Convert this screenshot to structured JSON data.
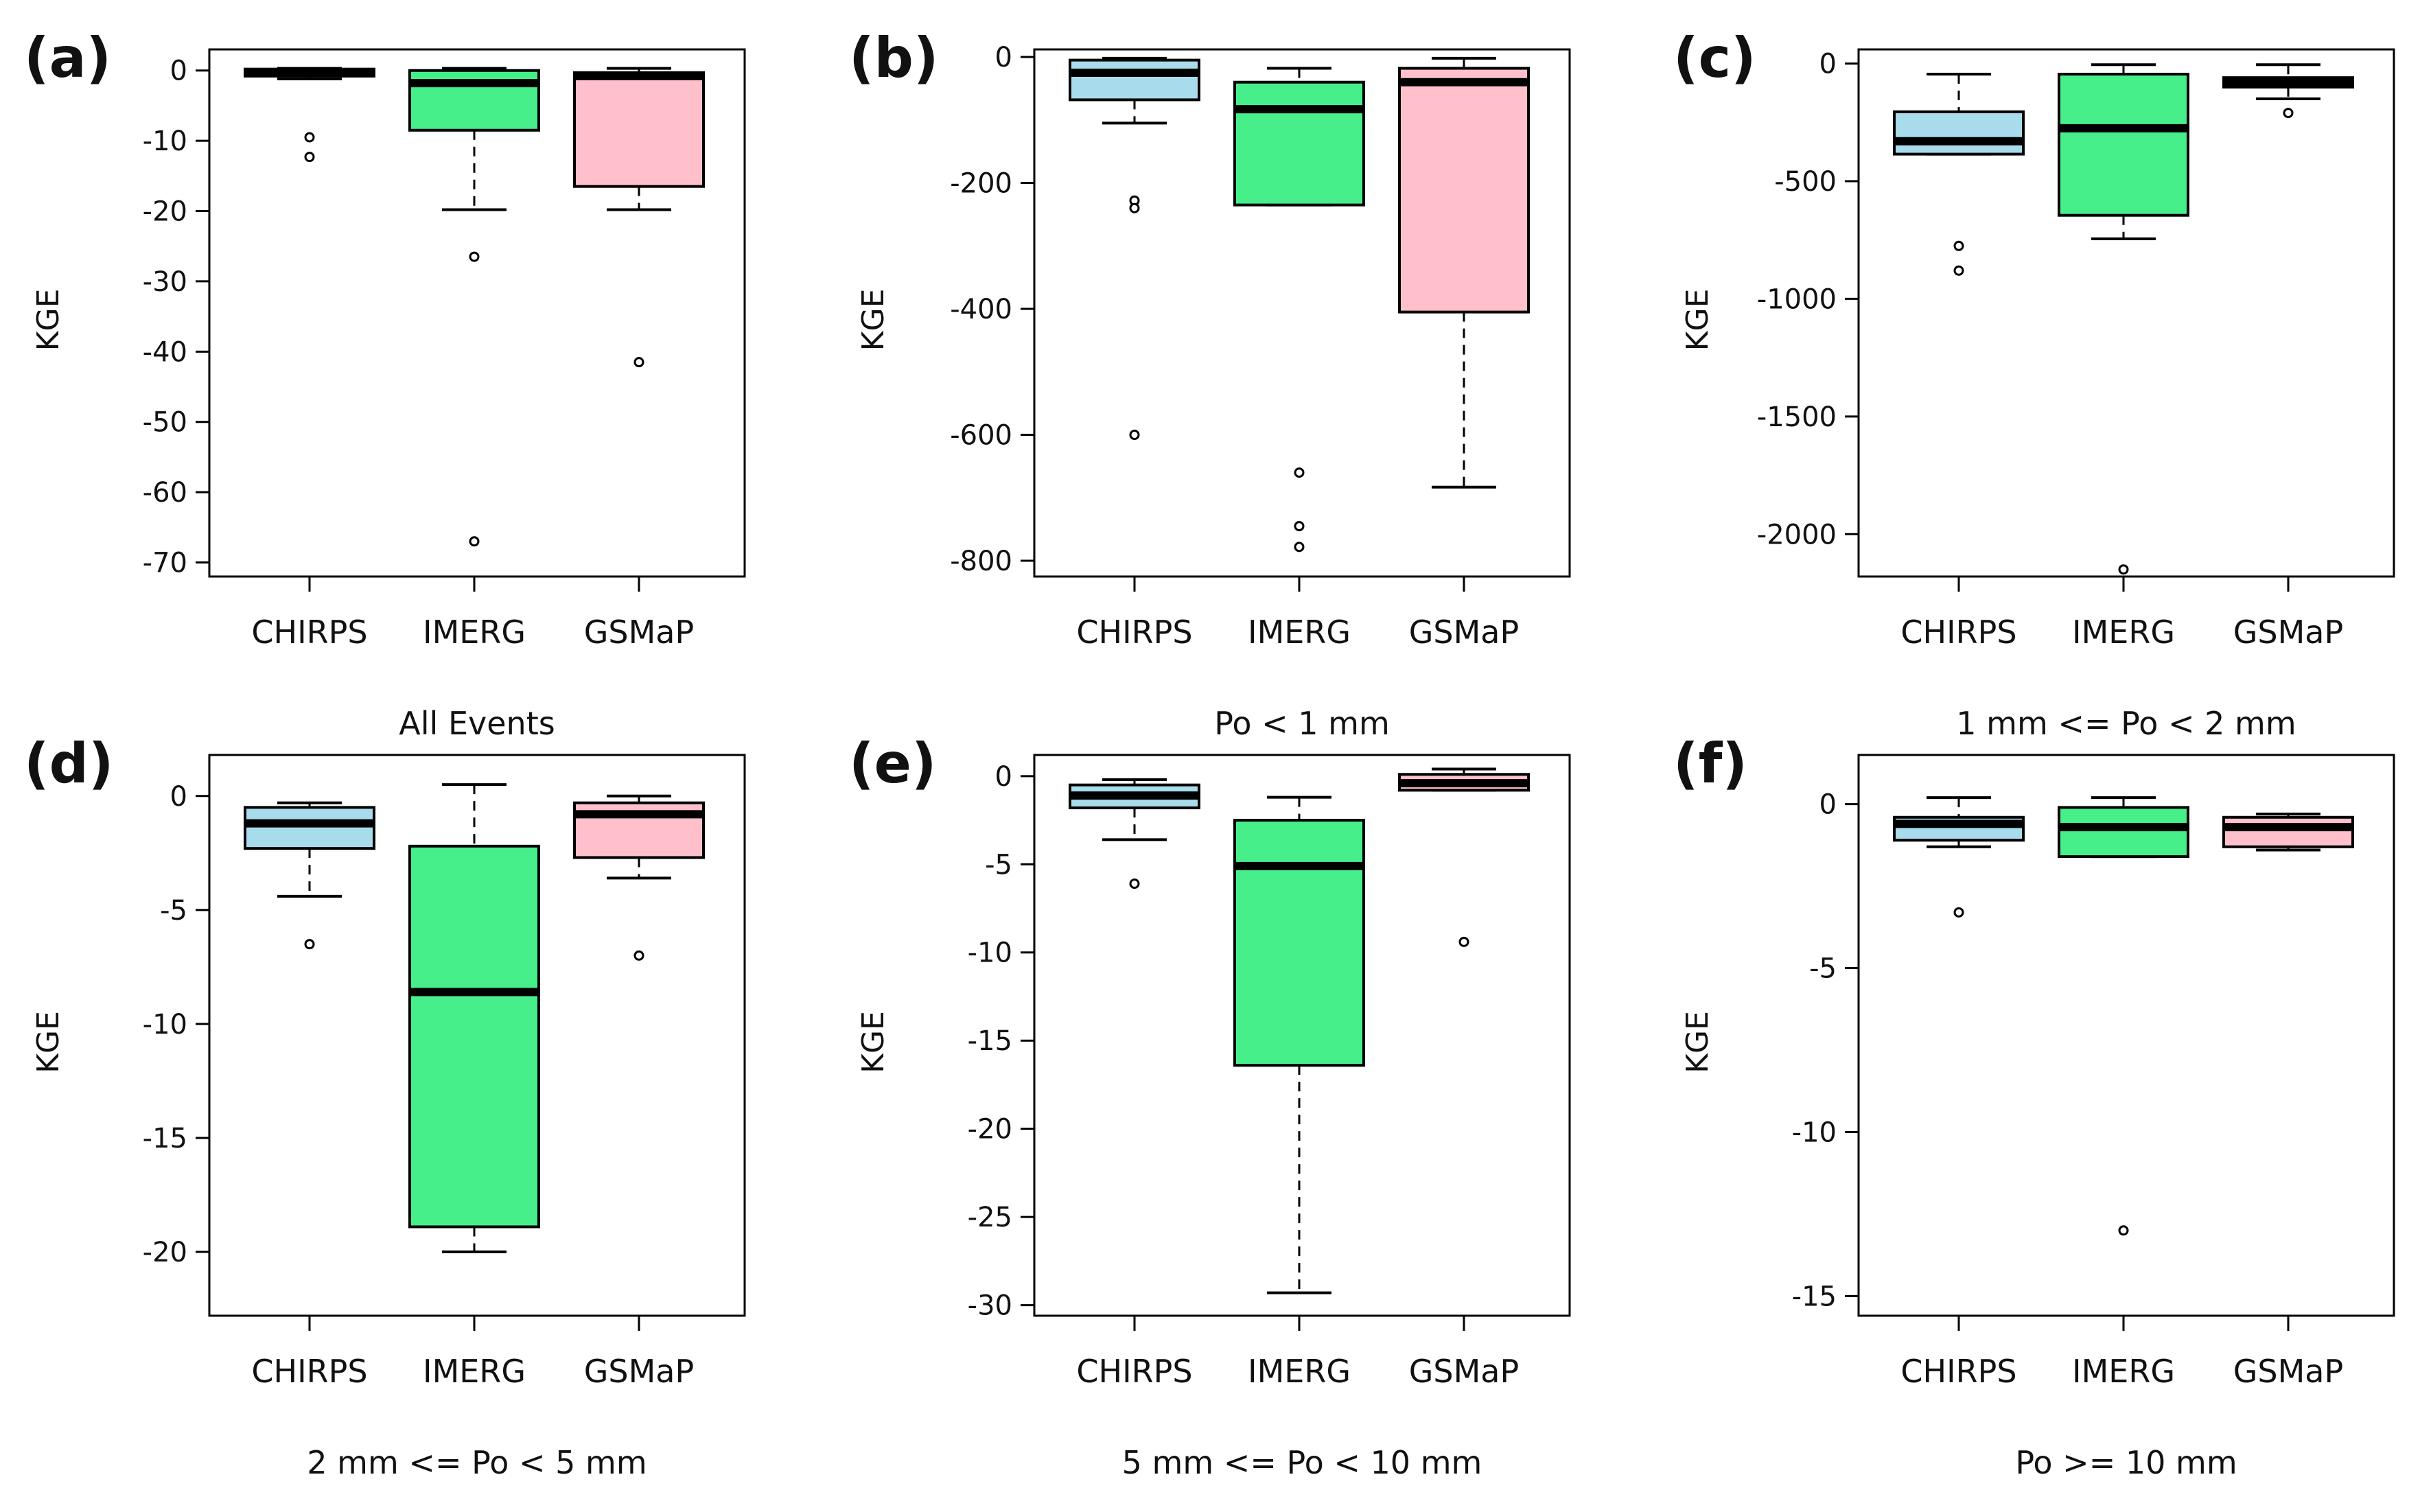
{
  "colors": {
    "CHIRPS": "#a8dcec",
    "IMERG": "#46ef8a",
    "GSMaP": "#ffc0cb",
    "outline": "#000000",
    "background": "#ffffff"
  },
  "chart_data": [
    {
      "type": "box",
      "panel_label": "(a)",
      "xlabel": "All Events",
      "ylabel": "KGE",
      "categories": [
        "CHIRPS",
        "IMERG",
        "GSMaP"
      ],
      "ylim": [
        -72,
        3
      ],
      "yticks": [
        0,
        -10,
        -20,
        -30,
        -40,
        -50,
        -60,
        -70
      ],
      "ytick_labels": [
        "0",
        "-10",
        "-20",
        "-30",
        "-40",
        "-50",
        "-60",
        "-70"
      ],
      "boxes": [
        {
          "name": "CHIRPS",
          "whisker_high": 0.3,
          "q3": 0.2,
          "median": -0.3,
          "q1": -0.8,
          "whisker_low": -1.2,
          "outliers": [
            -9.5,
            -12.3
          ]
        },
        {
          "name": "IMERG",
          "whisker_high": 0.3,
          "q3": 0.0,
          "median": -1.8,
          "q1": -8.5,
          "whisker_low": -19.8,
          "outliers": [
            -26.5,
            -67.0
          ]
        },
        {
          "name": "GSMaP",
          "whisker_high": 0.3,
          "q3": -0.3,
          "median": -0.8,
          "q1": -16.5,
          "whisker_low": -19.8,
          "outliers": [
            -41.5
          ]
        }
      ]
    },
    {
      "type": "box",
      "panel_label": "(b)",
      "xlabel": "Po < 1 mm",
      "ylabel": "KGE",
      "categories": [
        "CHIRPS",
        "IMERG",
        "GSMaP"
      ],
      "ylim": [
        -825,
        12
      ],
      "yticks": [
        0,
        -200,
        -400,
        -600,
        -800
      ],
      "ytick_labels": [
        "0",
        "-200",
        "-400",
        "-600",
        "-800"
      ],
      "boxes": [
        {
          "name": "CHIRPS",
          "whisker_high": -2,
          "q3": -5,
          "median": -25,
          "q1": -68,
          "whisker_low": -105,
          "outliers": [
            -228,
            -240,
            -600
          ]
        },
        {
          "name": "IMERG",
          "whisker_high": -18,
          "q3": -40,
          "median": -83,
          "q1": -235,
          "whisker_low": -235,
          "outliers": [
            -660,
            -745,
            -778
          ]
        },
        {
          "name": "GSMaP",
          "whisker_high": -2,
          "q3": -18,
          "median": -40,
          "q1": -405,
          "whisker_low": -683,
          "outliers": []
        }
      ]
    },
    {
      "type": "box",
      "panel_label": "(c)",
      "xlabel": "1 mm <= Po < 2 mm",
      "ylabel": "KGE",
      "categories": [
        "CHIRPS",
        "IMERG",
        "GSMaP"
      ],
      "ylim": [
        -2180,
        60
      ],
      "yticks": [
        0,
        -500,
        -1000,
        -1500,
        -2000
      ],
      "ytick_labels": [
        "0",
        "-500",
        "-1000",
        "-1500",
        "-2000"
      ],
      "boxes": [
        {
          "name": "CHIRPS",
          "whisker_high": -45,
          "q3": -205,
          "median": -330,
          "q1": -385,
          "whisker_low": -385,
          "outliers": [
            -775,
            -880
          ]
        },
        {
          "name": "IMERG",
          "whisker_high": -5,
          "q3": -45,
          "median": -275,
          "q1": -645,
          "whisker_low": -745,
          "outliers": [
            -2150
          ]
        },
        {
          "name": "GSMaP",
          "whisker_high": -5,
          "q3": -60,
          "median": -80,
          "q1": -100,
          "whisker_low": -150,
          "outliers": [
            -210
          ]
        }
      ]
    },
    {
      "type": "box",
      "panel_label": "(d)",
      "xlabel": "2 mm <= Po < 5 mm",
      "ylabel": "KGE",
      "categories": [
        "CHIRPS",
        "IMERG",
        "GSMaP"
      ],
      "ylim": [
        -22.8,
        1.8
      ],
      "yticks": [
        0,
        -5,
        -10,
        -15,
        -20
      ],
      "ytick_labels": [
        "0",
        "-5",
        "-10",
        "-15",
        "-20"
      ],
      "boxes": [
        {
          "name": "CHIRPS",
          "whisker_high": -0.3,
          "q3": -0.5,
          "median": -1.2,
          "q1": -2.3,
          "whisker_low": -4.4,
          "outliers": [
            -6.5
          ]
        },
        {
          "name": "IMERG",
          "whisker_high": 0.5,
          "q3": -2.2,
          "median": -8.6,
          "q1": -18.9,
          "whisker_low": -20.0,
          "outliers": []
        },
        {
          "name": "GSMaP",
          "whisker_high": 0.0,
          "q3": -0.3,
          "median": -0.8,
          "q1": -2.7,
          "whisker_low": -3.6,
          "outliers": [
            -7.0
          ]
        }
      ]
    },
    {
      "type": "box",
      "panel_label": "(e)",
      "xlabel": "5 mm <= Po < 10 mm",
      "ylabel": "KGE",
      "categories": [
        "CHIRPS",
        "IMERG",
        "GSMaP"
      ],
      "ylim": [
        -30.6,
        1.2
      ],
      "yticks": [
        0,
        -5,
        -10,
        -15,
        -20,
        -25,
        -30
      ],
      "ytick_labels": [
        "0",
        "-5",
        "-10",
        "-15",
        "-20",
        "-25",
        "-30"
      ],
      "boxes": [
        {
          "name": "CHIRPS",
          "whisker_high": -0.2,
          "q3": -0.5,
          "median": -1.1,
          "q1": -1.8,
          "whisker_low": -3.6,
          "outliers": [
            -6.1
          ]
        },
        {
          "name": "IMERG",
          "whisker_high": -1.2,
          "q3": -2.5,
          "median": -5.1,
          "q1": -16.4,
          "whisker_low": -29.3,
          "outliers": []
        },
        {
          "name": "GSMaP",
          "whisker_high": 0.4,
          "q3": 0.1,
          "median": -0.4,
          "q1": -0.8,
          "whisker_low": -0.8,
          "outliers": [
            -9.4
          ]
        }
      ]
    },
    {
      "type": "box",
      "panel_label": "(f)",
      "xlabel": "Po >= 10 mm",
      "ylabel": "KGE",
      "categories": [
        "CHIRPS",
        "IMERG",
        "GSMaP"
      ],
      "ylim": [
        -15.6,
        1.5
      ],
      "yticks": [
        0,
        -5,
        -10,
        -15
      ],
      "ytick_labels": [
        "0",
        "-5",
        "-10",
        "-15"
      ],
      "boxes": [
        {
          "name": "CHIRPS",
          "whisker_high": 0.2,
          "q3": -0.4,
          "median": -0.6,
          "q1": -1.1,
          "whisker_low": -1.3,
          "outliers": [
            -3.3
          ]
        },
        {
          "name": "IMERG",
          "whisker_high": 0.2,
          "q3": -0.1,
          "median": -0.7,
          "q1": -1.6,
          "whisker_low": -1.6,
          "outliers": [
            -13.0
          ]
        },
        {
          "name": "GSMaP",
          "whisker_high": -0.3,
          "q3": -0.4,
          "median": -0.7,
          "q1": -1.3,
          "whisker_low": -1.4,
          "outliers": []
        }
      ]
    }
  ]
}
